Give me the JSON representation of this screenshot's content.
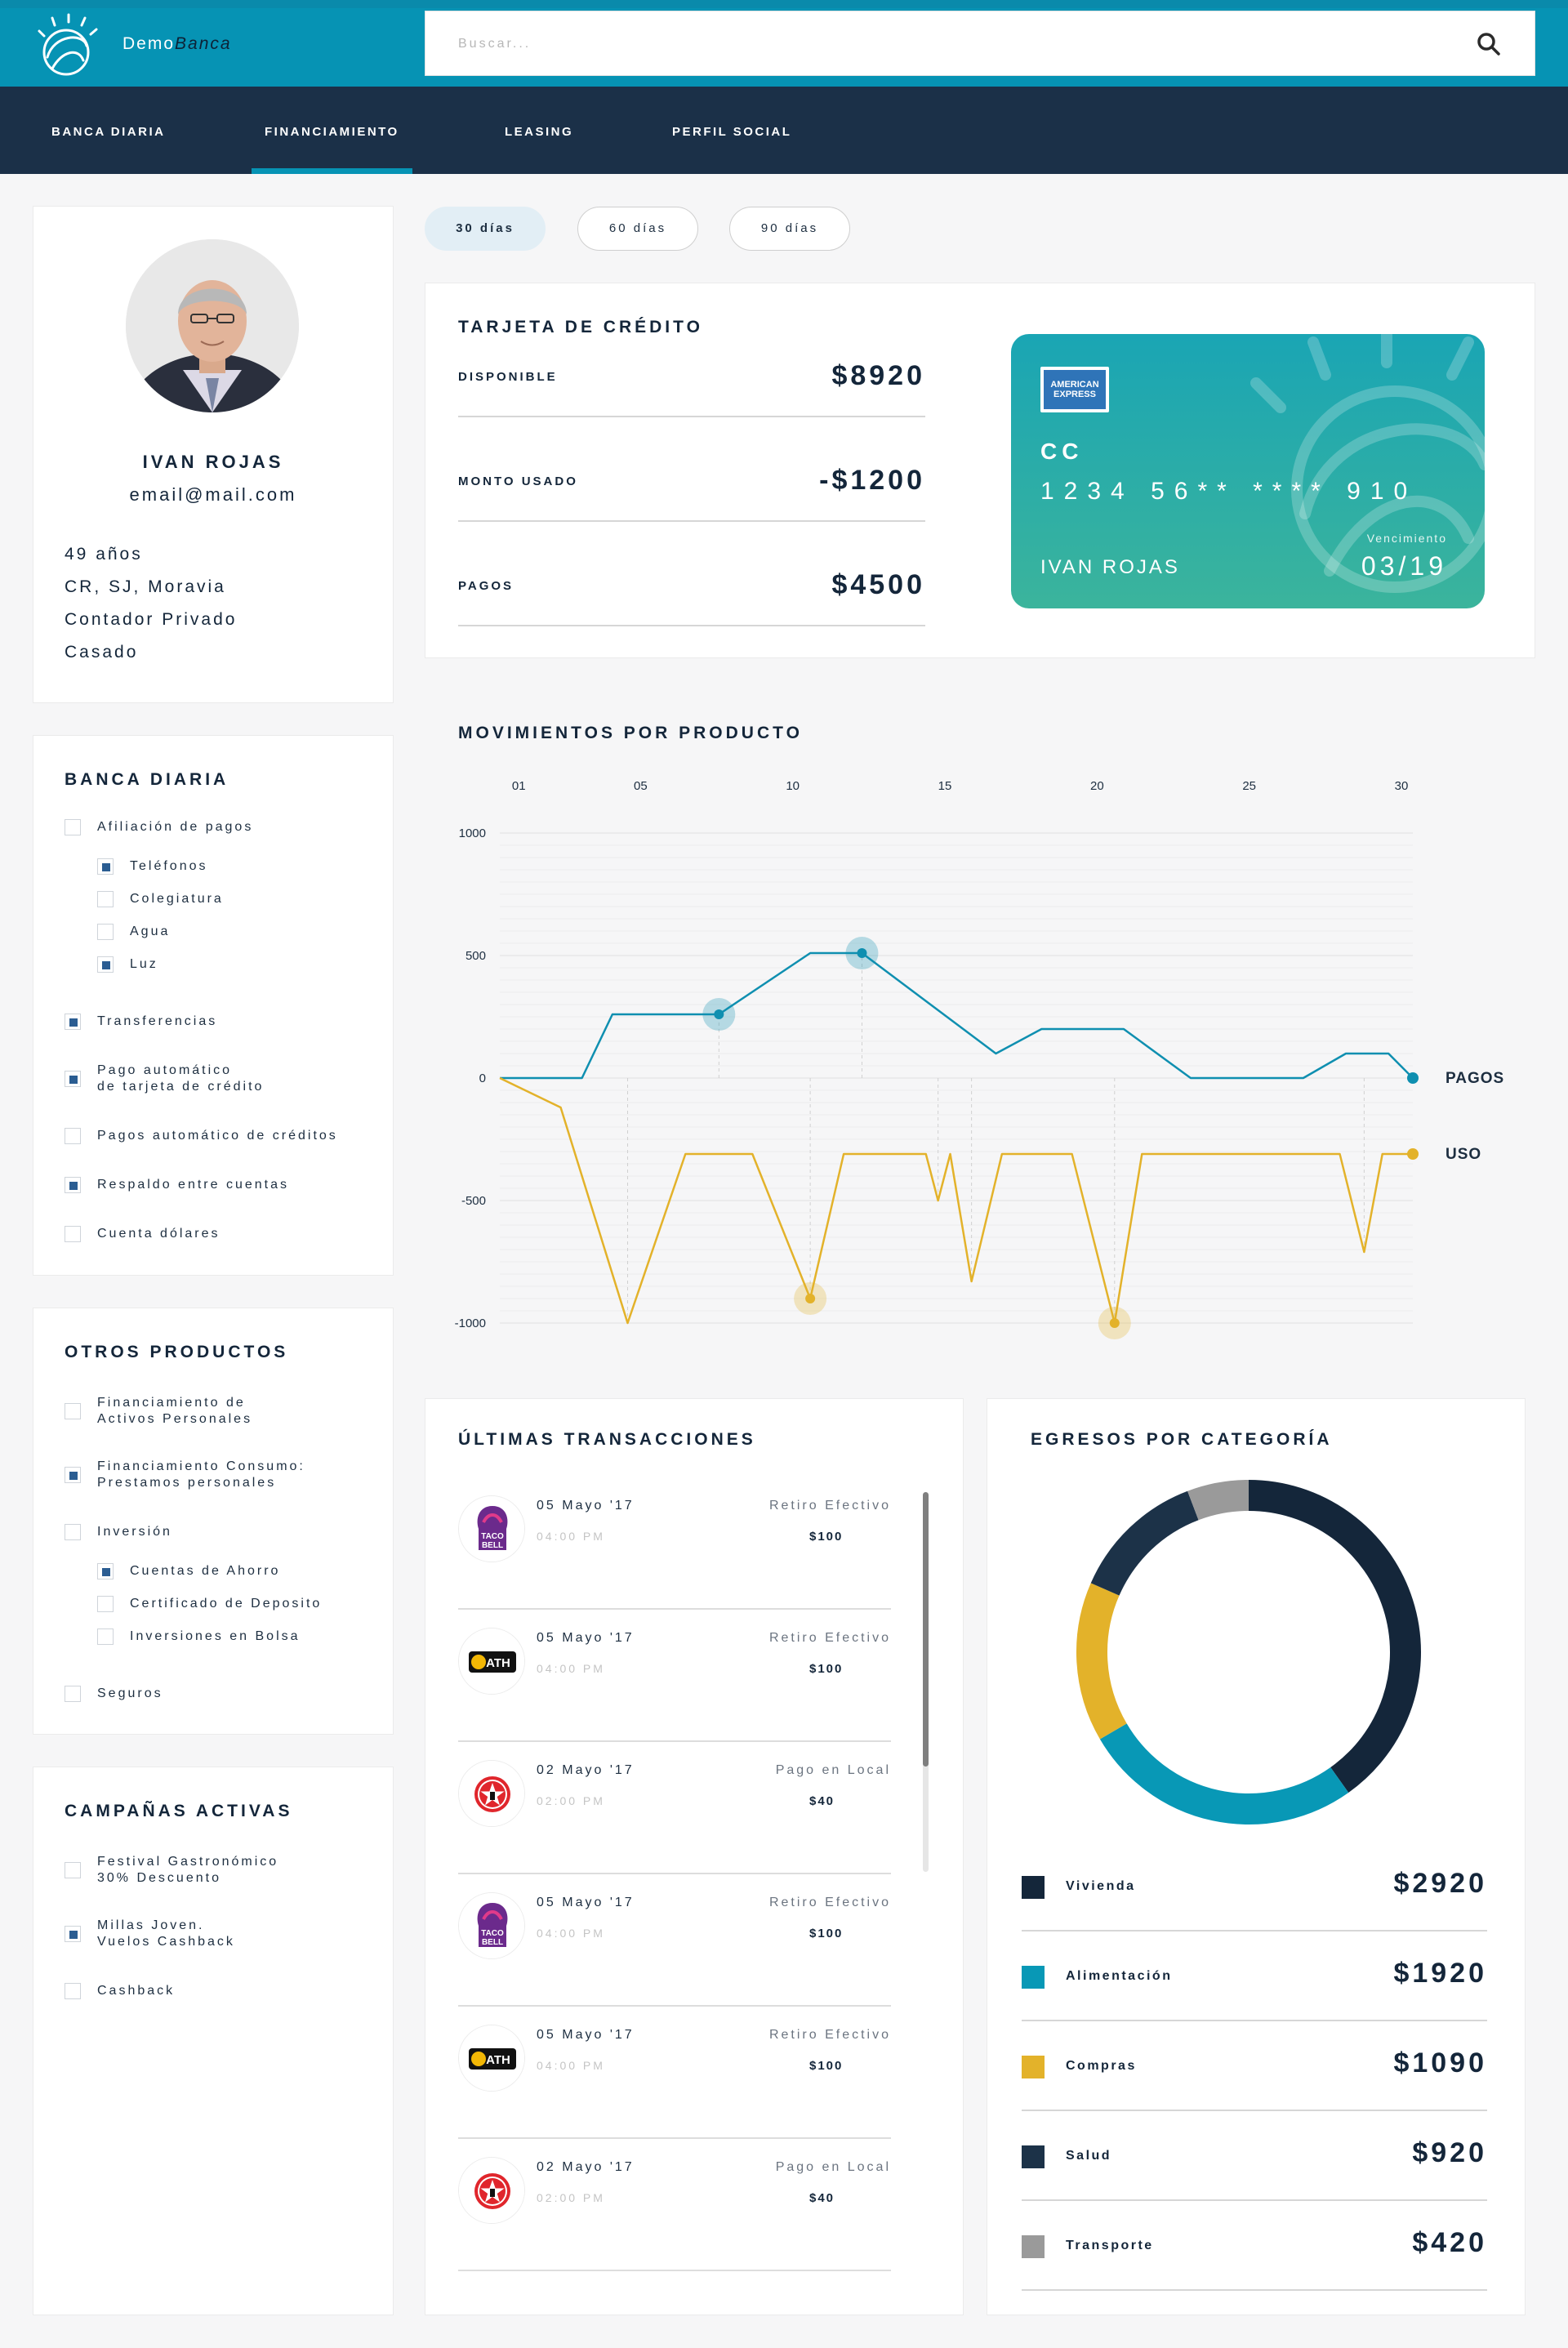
{
  "header": {
    "brand_part1": "Demo",
    "brand_part2": "Banca",
    "search_placeholder": "Buscar..."
  },
  "nav": {
    "tabs": [
      {
        "label": "BANCA DIARIA",
        "active": false
      },
      {
        "label": "FINANCIAMIENTO",
        "active": true
      },
      {
        "label": "LEASING",
        "active": false
      },
      {
        "label": "PERFIL SOCIAL",
        "active": false
      }
    ]
  },
  "profile": {
    "name": "IVAN ROJAS",
    "email": "email@mail.com",
    "age": "49 años",
    "location": "CR, SJ, Moravia",
    "job": "Contador Privado",
    "status": "Casado"
  },
  "banca_diaria": {
    "title": "BANCA DIARIA",
    "items": [
      {
        "label": "Afiliación de pagos",
        "checked": false
      },
      {
        "label": "Teléfonos",
        "checked": true
      },
      {
        "label": "Colegiatura",
        "checked": false
      },
      {
        "label": "Agua",
        "checked": false
      },
      {
        "label": "Luz",
        "checked": true
      },
      {
        "label": "Transferencias",
        "checked": true
      },
      {
        "label": "Pago automático",
        "label2": "de tarjeta de crédito",
        "checked": true
      },
      {
        "label": "Pagos automático de créditos",
        "checked": false
      },
      {
        "label": "Respaldo entre cuentas",
        "checked": true
      },
      {
        "label": "Cuenta dólares",
        "checked": false
      }
    ]
  },
  "otros_productos": {
    "title": "OTROS PRODUCTOS",
    "items": [
      {
        "label": "Financiamiento de",
        "label2": "Activos Personales",
        "checked": false
      },
      {
        "label": "Financiamiento Consumo:",
        "label2": "Prestamos personales",
        "checked": true
      },
      {
        "label": "Inversión",
        "checked": false
      },
      {
        "label": "Cuentas de Ahorro",
        "checked": true
      },
      {
        "label": "Certificado de Deposito",
        "checked": false
      },
      {
        "label": "Inversiones en Bolsa",
        "checked": false
      },
      {
        "label": "Seguros",
        "checked": false
      }
    ]
  },
  "campanas": {
    "title": "CAMPAÑAS ACTIVAS",
    "items": [
      {
        "label": "Festival Gastronómico",
        "label2": "30% Descuento",
        "checked": false
      },
      {
        "label": "Millas Joven.",
        "label2": "Vuelos Cashback",
        "checked": true
      },
      {
        "label": "Cashback",
        "checked": false
      }
    ]
  },
  "ranges": [
    {
      "label": "30 días",
      "active": true
    },
    {
      "label": "60 días",
      "active": false
    },
    {
      "label": "90 días",
      "active": false
    }
  ],
  "credit": {
    "title": "TARJETA DE CRÉDITO",
    "rows": [
      {
        "label": "DISPONIBLE",
        "value": "$8920"
      },
      {
        "label": "MONTO USADO",
        "value": "-$1200"
      },
      {
        "label": "PAGOS",
        "value": "$4500"
      }
    ],
    "card": {
      "issuer_line1": "AMERICAN",
      "issuer_line2": "EXPRESS",
      "type": "CC",
      "number": "1234 56** **** 910",
      "holder": "IVAN ROJAS",
      "exp_label": "Vencimiento",
      "exp": "03/19"
    }
  },
  "chart_data": {
    "type": "line",
    "title": "MOVIMIENTOS POR PRODUCTO",
    "x_ticks": [
      "01",
      "05",
      "10",
      "15",
      "20",
      "25",
      "30"
    ],
    "y_ticks": [
      "1000",
      "500",
      "0",
      "-500",
      "-1000"
    ],
    "ylim": [
      -1000,
      1000
    ],
    "xlim": [
      0,
      30
    ],
    "series": [
      {
        "name": "PAGOS",
        "color": "#0f8fb0",
        "points": [
          [
            0,
            0
          ],
          [
            2.7,
            0
          ],
          [
            3.7,
            260
          ],
          [
            7.2,
            260
          ],
          [
            10.2,
            510
          ],
          [
            11.9,
            510
          ],
          [
            16.3,
            100
          ],
          [
            17.8,
            200
          ],
          [
            20.5,
            200
          ],
          [
            22.7,
            0
          ],
          [
            26.4,
            0
          ],
          [
            27.8,
            100
          ],
          [
            29.2,
            100
          ],
          [
            30,
            0
          ]
        ],
        "highlights": [
          [
            7.2,
            260
          ],
          [
            11.9,
            510
          ]
        ]
      },
      {
        "name": "USO",
        "color": "#e3b22a",
        "points": [
          [
            0,
            0
          ],
          [
            2,
            -120
          ],
          [
            4.2,
            -1000
          ],
          [
            6.1,
            -310
          ],
          [
            8.3,
            -310
          ],
          [
            10.2,
            -900
          ],
          [
            11.3,
            -310
          ],
          [
            14,
            -310
          ],
          [
            14.4,
            -500
          ],
          [
            14.8,
            -310
          ],
          [
            15.5,
            -830
          ],
          [
            16.5,
            -310
          ],
          [
            18.8,
            -310
          ],
          [
            20.2,
            -1000
          ],
          [
            21.1,
            -310
          ],
          [
            27.6,
            -310
          ],
          [
            28.4,
            -710
          ],
          [
            29,
            -310
          ],
          [
            30,
            -310
          ]
        ],
        "highlights": [
          [
            10.2,
            -900
          ],
          [
            20.2,
            -1000
          ]
        ]
      }
    ]
  },
  "transactions": {
    "title": "ÚLTIMAS TRANSACCIONES",
    "items": [
      {
        "date": "05 Mayo '17",
        "time": "04:00 PM",
        "type": "Retiro Efectivo",
        "amount": "$100",
        "logo": "taco-bell",
        "logo_line1": "TACO",
        "logo_line2": "BELL"
      },
      {
        "date": "05 Mayo '17",
        "time": "04:00 PM",
        "type": "Retiro Efectivo",
        "amount": "$100",
        "logo": "ath",
        "logo_line1": "ATH",
        "logo_line2": ""
      },
      {
        "date": "02 Mayo '17",
        "time": "02:00 PM",
        "type": "Pago en Local",
        "amount": "$40",
        "logo": "texaco",
        "logo_line1": "",
        "logo_line2": ""
      },
      {
        "date": "05 Mayo '17",
        "time": "04:00 PM",
        "type": "Retiro Efectivo",
        "amount": "$100",
        "logo": "taco-bell",
        "logo_line1": "TACO",
        "logo_line2": "BELL"
      },
      {
        "date": "05 Mayo '17",
        "time": "04:00 PM",
        "type": "Retiro Efectivo",
        "amount": "$100",
        "logo": "ath",
        "logo_line1": "ATH",
        "logo_line2": ""
      },
      {
        "date": "02 Mayo '17",
        "time": "02:00 PM",
        "type": "Pago en Local",
        "amount": "$40",
        "logo": "texaco",
        "logo_line1": "",
        "logo_line2": ""
      }
    ]
  },
  "expenses": {
    "title": "EGRESOS POR CATEGORÍA",
    "items": [
      {
        "name": "Vivienda",
        "value": "$2920",
        "amount": 2920,
        "color": "#14263a"
      },
      {
        "name": "Alimentación",
        "value": "$1920",
        "amount": 1920,
        "color": "#0898b6"
      },
      {
        "name": "Compras",
        "value": "$1090",
        "amount": 1090,
        "color": "#e3b22a"
      },
      {
        "name": "Salud",
        "value": "$920",
        "amount": 920,
        "color": "#1c3248"
      },
      {
        "name": "Transporte",
        "value": "$420",
        "amount": 420,
        "color": "#9a9a9a"
      }
    ]
  }
}
